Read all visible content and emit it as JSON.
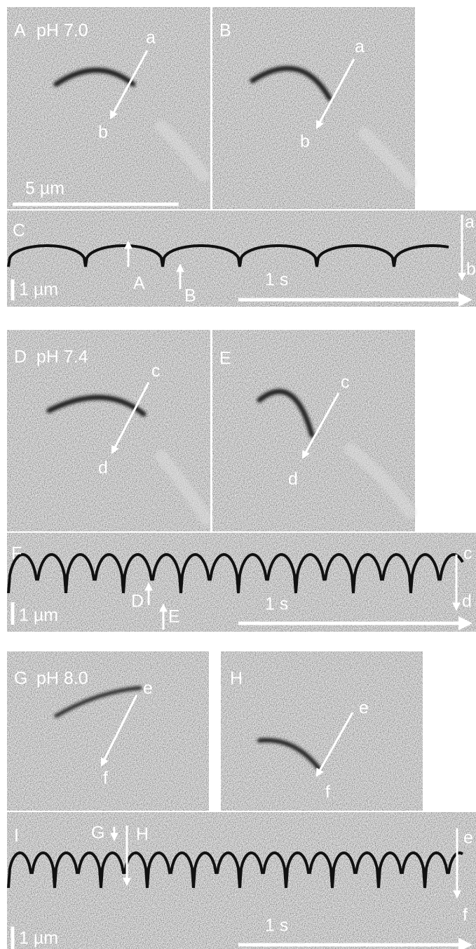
{
  "figure": {
    "rows": [
      {
        "images": [
          {
            "label": "A",
            "condition": "pH 7.0",
            "arrow_start": "a",
            "arrow_end": "b",
            "scale_bar": "5 µm"
          },
          {
            "label": "B",
            "arrow_start": "a",
            "arrow_end": "b"
          }
        ],
        "kymograph": {
          "label": "C",
          "markers": [
            "A",
            "B"
          ],
          "arrow_start": "a",
          "arrow_end": "b",
          "length_scale": "1 µm",
          "time_scale": "1 s"
        }
      },
      {
        "images": [
          {
            "label": "D",
            "condition": "pH 7.4",
            "arrow_start": "c",
            "arrow_end": "d"
          },
          {
            "label": "E",
            "arrow_start": "c",
            "arrow_end": "d"
          }
        ],
        "kymograph": {
          "label": "F",
          "markers": [
            "D",
            "E"
          ],
          "arrow_start": "c",
          "arrow_end": "d",
          "length_scale": "1 µm",
          "time_scale": "1 s"
        }
      },
      {
        "images": [
          {
            "label": "G",
            "condition": "pH 8.0",
            "arrow_start": "e",
            "arrow_end": "f"
          },
          {
            "label": "H",
            "arrow_start": "e",
            "arrow_end": "f"
          }
        ],
        "kymograph": {
          "label": "I",
          "markers": [
            "G",
            "H"
          ],
          "arrow_start": "e",
          "arrow_end": "f",
          "length_scale": "1 µm",
          "time_scale": "1 s"
        }
      }
    ]
  }
}
